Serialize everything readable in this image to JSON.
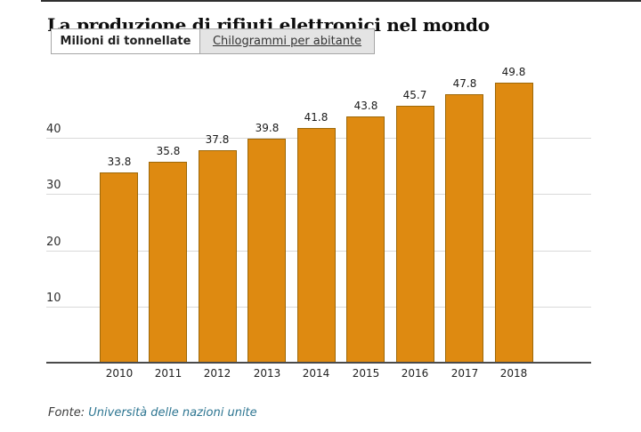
{
  "header": {
    "title": "La produzione di rifiuti elettronici nel mondo",
    "tabs": [
      {
        "label": "Milioni di tonnellate",
        "active": true
      },
      {
        "label": "Chilogrammi per abitante",
        "active": false
      }
    ]
  },
  "footer": {
    "source_label": "Fonte:",
    "source_link_text": "Università delle nazioni unite",
    "source_link_color": "#2d7591"
  },
  "chart_data": {
    "type": "bar",
    "title": "La produzione di rifiuti elettronici nel mondo",
    "unit_selected": "Milioni di tonnellate",
    "categories": [
      "2010",
      "2011",
      "2012",
      "2013",
      "2014",
      "2015",
      "2016",
      "2017",
      "2018"
    ],
    "values": [
      33.8,
      35.8,
      37.8,
      39.8,
      41.8,
      43.8,
      45.7,
      47.8,
      49.8
    ],
    "xlabel": "",
    "ylabel": "",
    "ylim": [
      0,
      50
    ],
    "yticks": [
      10,
      20,
      30,
      40
    ],
    "grid": true,
    "legend": false,
    "value_labels": true,
    "bar_color": "#de8a11",
    "bar_border_color": "#9d6808"
  }
}
